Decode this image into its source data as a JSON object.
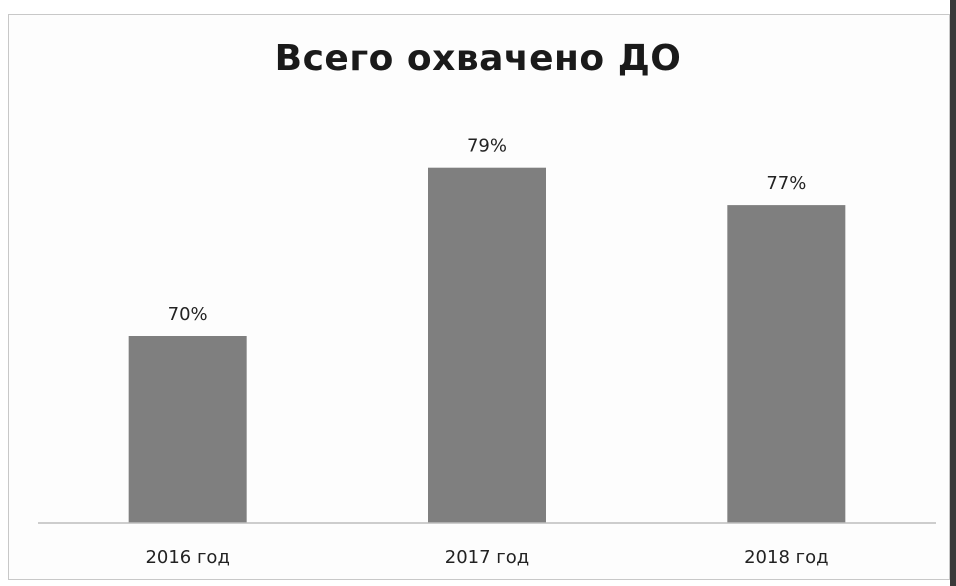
{
  "chart_data": {
    "type": "bar",
    "title": "Всего охвачено ДО",
    "categories": [
      "2016 год",
      "2017 год",
      "2018 год"
    ],
    "values": [
      70,
      79,
      77
    ],
    "data_labels": [
      "70%",
      "79%",
      "77%"
    ],
    "ylabel": "",
    "xlabel": "",
    "ylim": [
      0,
      100
    ],
    "grid": false,
    "legend": "none",
    "bar_color": "#7f7f7f"
  }
}
